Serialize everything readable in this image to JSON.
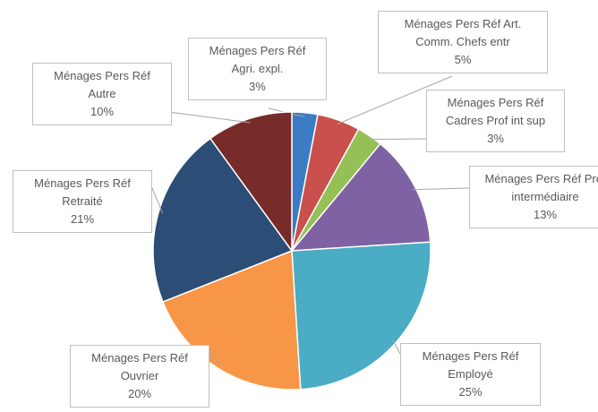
{
  "chart_data": {
    "type": "pie",
    "categories": [
      "Ménages Pers Réf Agri. expl.",
      "Ménages Pers Réf Art. Comm. Chefs entr",
      "Ménages Pers Réf Cadres Prof int sup",
      "Ménages Pers Réf Prof intermédiaire",
      "Ménages Pers Réf Employé",
      "Ménages Pers Réf Ouvrier",
      "Ménages Pers Réf Retraité",
      "Ménages Pers Réf Autre"
    ],
    "values": [
      3,
      5,
      3,
      13,
      25,
      20,
      21,
      10
    ],
    "value_labels": [
      "3%",
      "5%",
      "3%",
      "13%",
      "25%",
      "20%",
      "21%",
      "10%"
    ],
    "colors": [
      "#3c7cc4",
      "#c9504c",
      "#94c055",
      "#7e62a3",
      "#4aacc5",
      "#f79646",
      "#2c4d75",
      "#772c2a"
    ]
  }
}
